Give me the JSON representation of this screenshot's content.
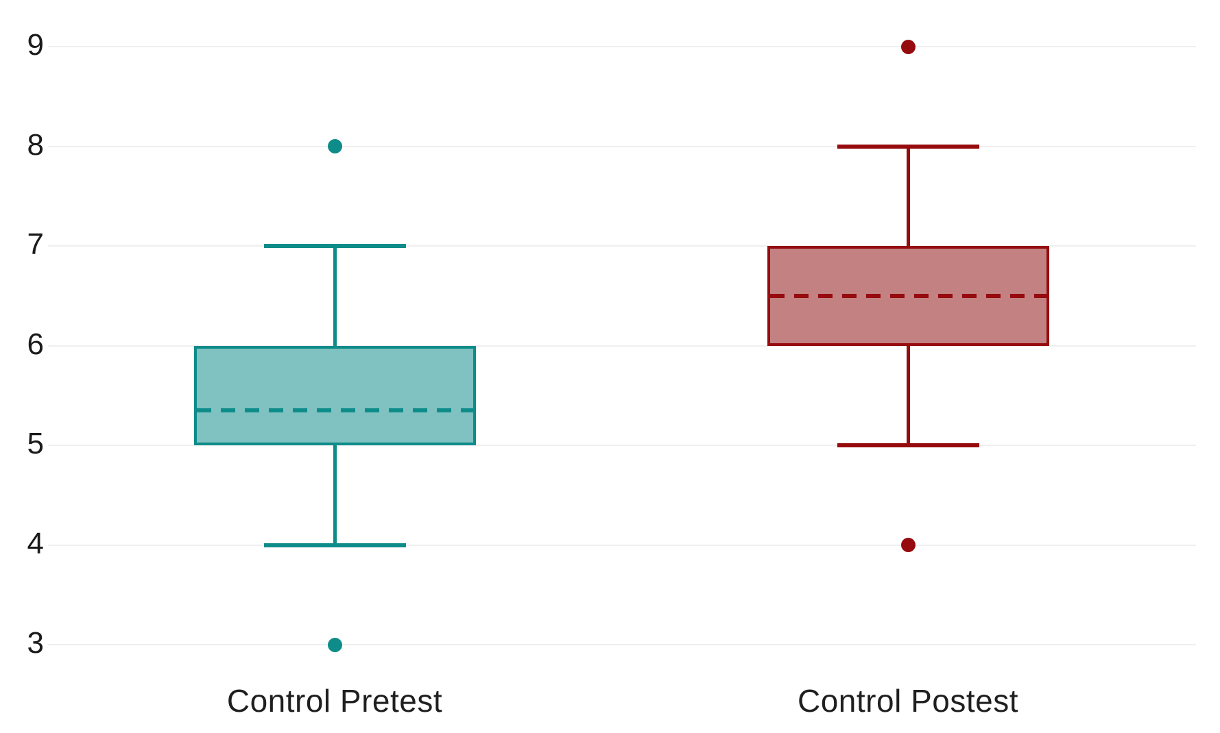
{
  "page": {
    "background": "#ffffff",
    "title": ""
  },
  "colors": {
    "gridline": "#efefef",
    "tick_text": "#1b1b1b",
    "label_text": "#1f1f1f"
  },
  "chart_data": {
    "type": "box",
    "title": "",
    "xlabel": "",
    "ylabel": "",
    "categories": [
      "Control Pretest",
      "Control Postest"
    ],
    "yticks": [
      9,
      8,
      7,
      6,
      5,
      4,
      3
    ],
    "ylim": [
      2.55,
      9.45
    ],
    "grid": "horizontal",
    "legend_position": "none",
    "mean_line_style": "dashed",
    "median_line_shown": false,
    "series": [
      {
        "name": "Control Pretest",
        "stroke": "#0e8c8a",
        "fill": "#7fc2c1",
        "q1": 5,
        "q3": 6,
        "mean": 5.35,
        "whisker_low": 4,
        "whisker_high": 7,
        "outliers": [
          8,
          3
        ]
      },
      {
        "name": "Control Postest",
        "stroke": "#960b0e",
        "fill": "#c38182",
        "q1": 6,
        "q3": 7,
        "mean": 6.5,
        "whisker_low": 5,
        "whisker_high": 8,
        "outliers": [
          9,
          4
        ]
      }
    ]
  }
}
